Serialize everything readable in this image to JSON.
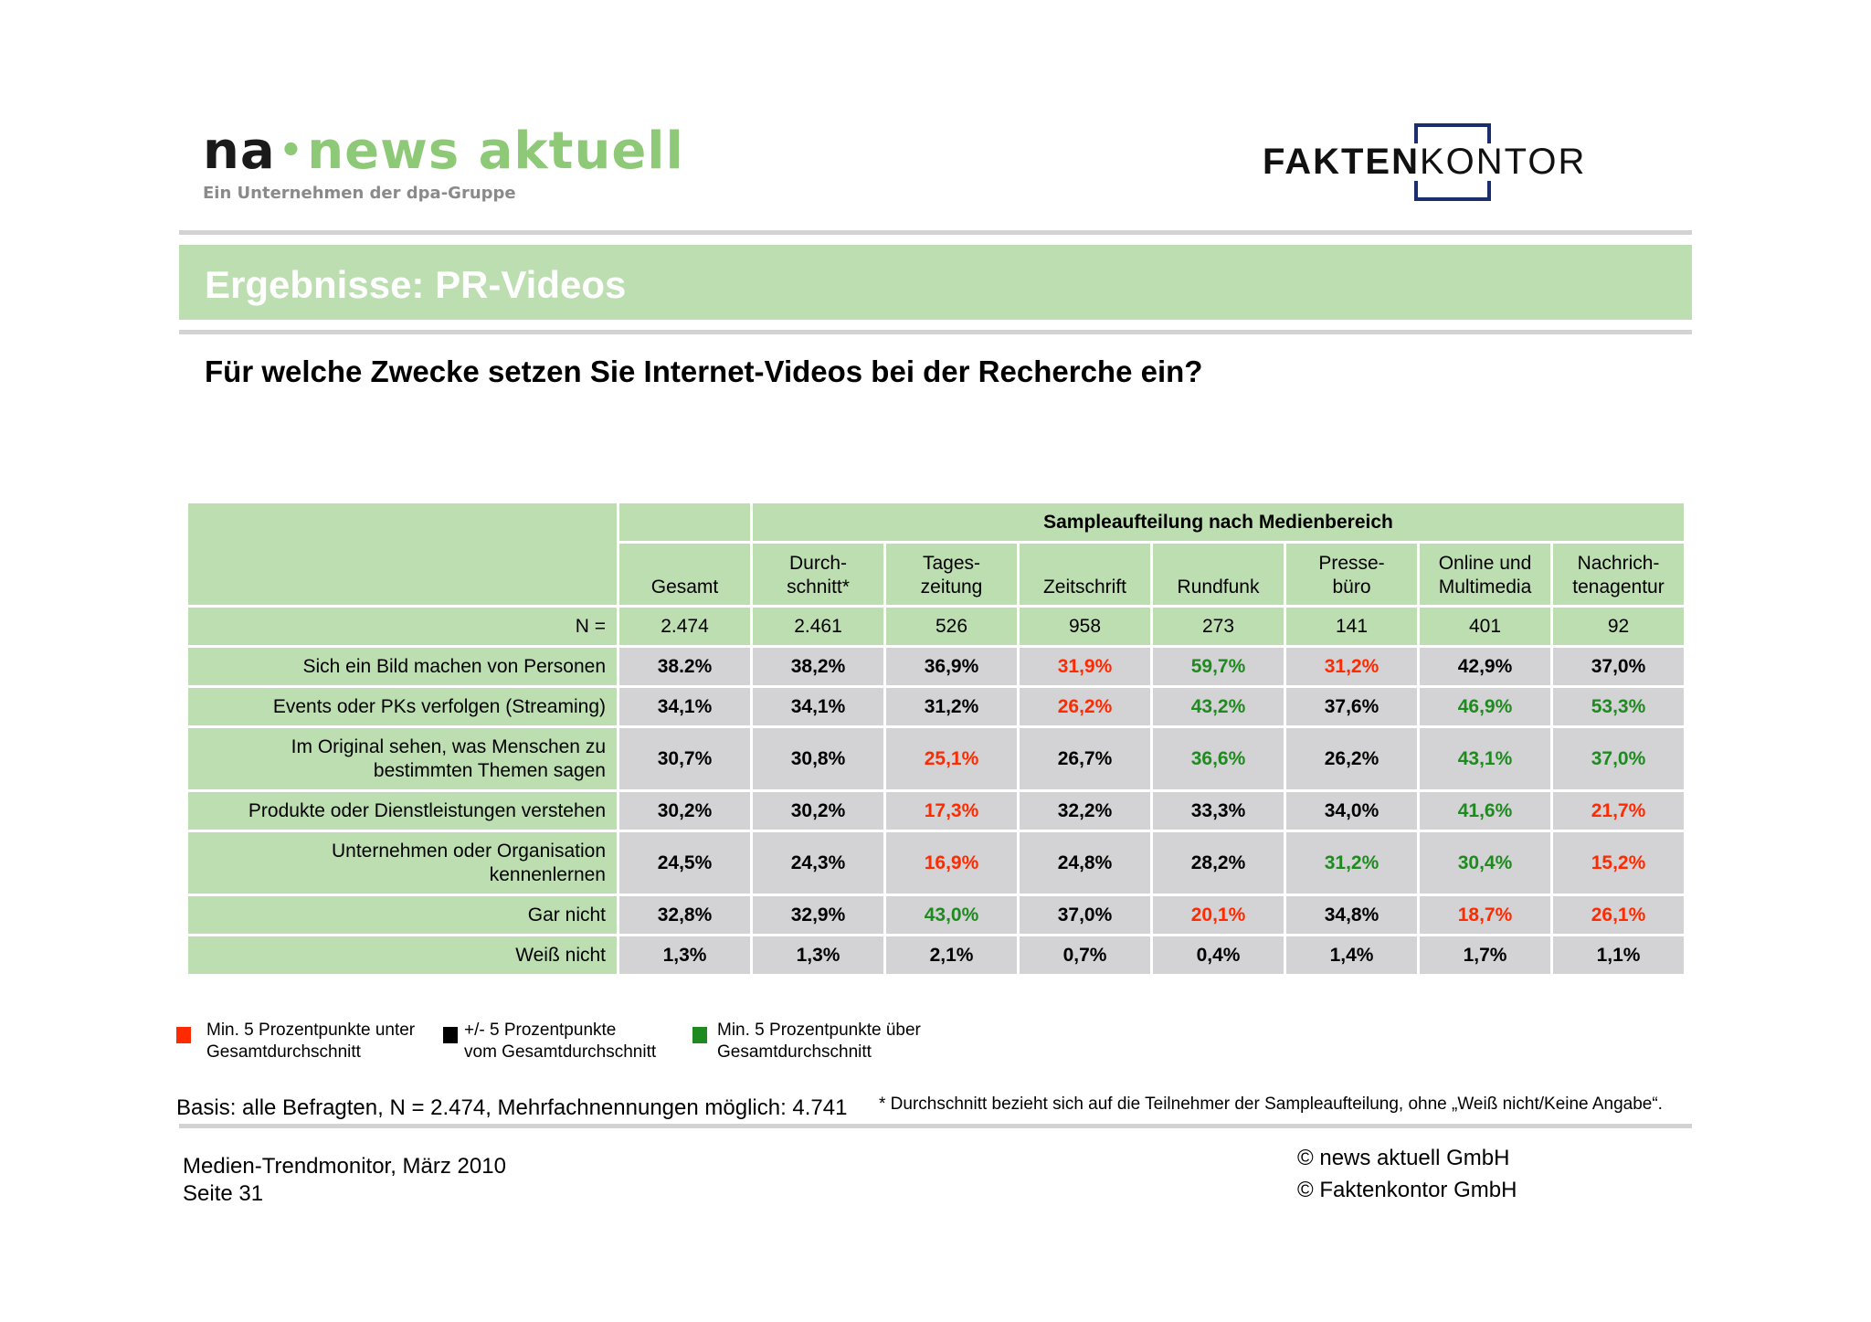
{
  "header": {
    "na_logo": {
      "na": "na",
      "dot": "•",
      "brand": "news aktuell",
      "subtitle": "Ein Unternehmen der dpa-Gruppe"
    },
    "fk_logo": {
      "part1": "FAKTEN",
      "part2": "KONTOR",
      "color": "#1b2d6b"
    }
  },
  "title": "Ergebnisse: PR-Videos",
  "question": "Für welche Zwecke setzen Sie Internet-Videos bei der Recherche ein?",
  "table": {
    "group_header": "Sampleaufteilung nach Medienbereich",
    "columns": [
      {
        "line1": "",
        "line2": "Gesamt"
      },
      {
        "line1": "Durch-",
        "line2": "schnitt*"
      },
      {
        "line1": "Tages-",
        "line2": "zeitung"
      },
      {
        "line1": "",
        "line2": "Zeitschrift"
      },
      {
        "line1": "",
        "line2": "Rundfunk"
      },
      {
        "line1": "Presse-",
        "line2": "büro"
      },
      {
        "line1": "Online und",
        "line2": "Multimedia"
      },
      {
        "line1": "Nachrich-",
        "line2": "tenagentur"
      }
    ],
    "n_row": {
      "label": "N =",
      "values": [
        "2.474",
        "2.461",
        "526",
        "958",
        "273",
        "141",
        "401",
        "92"
      ]
    },
    "rows": [
      {
        "label_line1": "Sich ein Bild machen von Personen",
        "label_line2": "",
        "values": [
          "38.2%",
          "38,2%",
          "36,9%",
          "31,9%",
          "59,7%",
          "31,2%",
          "42,9%",
          "37,0%"
        ],
        "colors": [
          "black",
          "black",
          "black",
          "red",
          "green",
          "red",
          "black",
          "black"
        ]
      },
      {
        "label_line1": "Events oder PKs verfolgen (Streaming)",
        "label_line2": "",
        "values": [
          "34,1%",
          "34,1%",
          "31,2%",
          "26,2%",
          "43,2%",
          "37,6%",
          "46,9%",
          "53,3%"
        ],
        "colors": [
          "black",
          "black",
          "black",
          "red",
          "green",
          "black",
          "green",
          "green"
        ]
      },
      {
        "label_line1": "Im Original sehen, was Menschen zu",
        "label_line2": "bestimmten Themen sagen",
        "values": [
          "30,7%",
          "30,8%",
          "25,1%",
          "26,7%",
          "36,6%",
          "26,2%",
          "43,1%",
          "37,0%"
        ],
        "colors": [
          "black",
          "black",
          "red",
          "black",
          "green",
          "black",
          "green",
          "green"
        ]
      },
      {
        "label_line1": "Produkte oder Dienstleistungen verstehen",
        "label_line2": "",
        "values": [
          "30,2%",
          "30,2%",
          "17,3%",
          "32,2%",
          "33,3%",
          "34,0%",
          "41,6%",
          "21,7%"
        ],
        "colors": [
          "black",
          "black",
          "red",
          "black",
          "black",
          "black",
          "green",
          "red"
        ]
      },
      {
        "label_line1": "Unternehmen oder Organisation",
        "label_line2": "kennenlernen",
        "values": [
          "24,5%",
          "24,3%",
          "16,9%",
          "24,8%",
          "28,2%",
          "31,2%",
          "30,4%",
          "15,2%"
        ],
        "colors": [
          "black",
          "black",
          "red",
          "black",
          "black",
          "green",
          "green",
          "red"
        ]
      },
      {
        "label_line1": "Gar nicht",
        "label_line2": "",
        "values": [
          "32,8%",
          "32,9%",
          "43,0%",
          "37,0%",
          "20,1%",
          "34,8%",
          "18,7%",
          "26,1%"
        ],
        "colors": [
          "black",
          "black",
          "green",
          "black",
          "red",
          "black",
          "red",
          "red"
        ]
      },
      {
        "label_line1": "Weiß nicht",
        "label_line2": "",
        "values": [
          "1,3%",
          "1,3%",
          "2,1%",
          "0,7%",
          "0,4%",
          "1,4%",
          "1,7%",
          "1,1%"
        ],
        "colors": [
          "black",
          "black",
          "black",
          "black",
          "black",
          "black",
          "black",
          "black"
        ]
      }
    ]
  },
  "legend": [
    {
      "color": "#ff2a00",
      "line1": "Min. 5 Prozentpunkte unter",
      "line2": "Gesamtdurchschnitt"
    },
    {
      "color": "#000000",
      "line1": "+/- 5 Prozentpunkte",
      "line2": "vom Gesamtdurchschnitt"
    },
    {
      "color": "#1f8a1f",
      "line1": "Min. 5 Prozentpunkte über",
      "line2": "Gesamtdurchschnitt"
    }
  ],
  "footer": {
    "basis": "Basis: alle Befragten, N = 2.474, Mehrfachnennungen möglich: 4.741",
    "footnote": "* Durchschnitt bezieht sich auf die Teilnehmer der Sampleaufteilung, ohne „Weiß nicht/Keine Angabe“.",
    "source_line1": "Medien-Trendmonitor, März 2010",
    "source_line2": "Seite 31",
    "copyright1": "© news aktuell GmbH",
    "copyright2": "© Faktenkontor GmbH"
  },
  "colors": {
    "green_band": "#bcdeb0",
    "gray_cell": "#d3d3d5",
    "red": "#ff2a00",
    "green": "#1f8a1f"
  }
}
